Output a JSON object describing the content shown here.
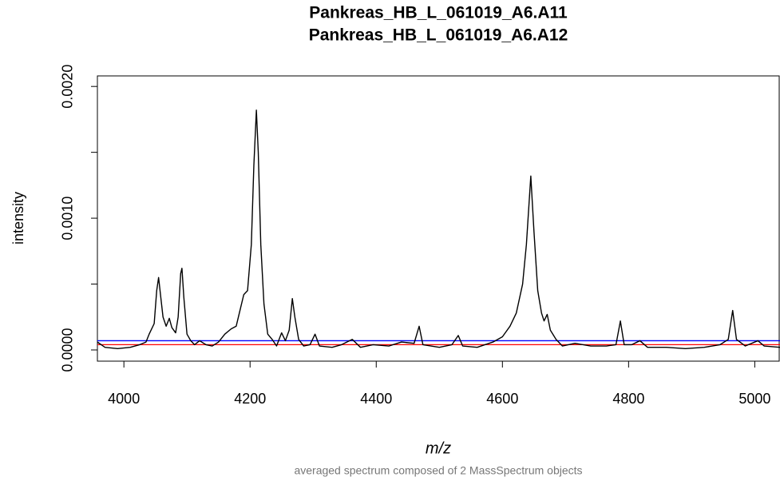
{
  "chart_data": {
    "type": "line",
    "title": [
      "Pankreas_HB_L_061019_A6.A11",
      "Pankreas_HB_L_061019_A6.A12"
    ],
    "xlabel": "m/z",
    "ylabel": "intensity",
    "subtitle": "averaged spectrum composed of 2 MassSpectrum objects",
    "xlim": [
      3958,
      5040
    ],
    "ylim": [
      -8.5e-05,
      0.00208
    ],
    "xticks": [
      4000,
      4200,
      4400,
      4600,
      4800,
      5000
    ],
    "yticks": [
      {
        "value": 0,
        "label": "0.0000"
      },
      {
        "value": 0.001,
        "label": "0.0010"
      },
      {
        "value": 0.002,
        "label": "0.0020"
      }
    ],
    "yticks_minor": [
      0.0005,
      0.0015
    ],
    "color": "#000000",
    "hlines": [
      {
        "value": 7e-05,
        "color": "#0000ff"
      },
      {
        "value": 4e-05,
        "color": "#ff0000"
      }
    ],
    "x": [
      3958,
      3970,
      3990,
      4010,
      4025,
      4035,
      4040,
      4048,
      4052,
      4055,
      4058,
      4062,
      4067,
      4072,
      4076,
      4082,
      4086,
      4090,
      4092,
      4095,
      4100,
      4106,
      4112,
      4120,
      4130,
      4140,
      4150,
      4160,
      4170,
      4178,
      4185,
      4190,
      4196,
      4202,
      4206,
      4210,
      4213,
      4217,
      4222,
      4228,
      4235,
      4242,
      4250,
      4256,
      4262,
      4267,
      4271,
      4277,
      4285,
      4295,
      4303,
      4310,
      4330,
      4345,
      4362,
      4375,
      4395,
      4420,
      4440,
      4460,
      4468,
      4474,
      4500,
      4520,
      4530,
      4537,
      4560,
      4585,
      4600,
      4612,
      4622,
      4632,
      4638,
      4645,
      4650,
      4656,
      4662,
      4666,
      4671,
      4676,
      4685,
      4695,
      4715,
      4740,
      4765,
      4780,
      4787,
      4793,
      4805,
      4818,
      4830,
      4860,
      4890,
      4920,
      4945,
      4958,
      4965,
      4971,
      4985,
      5005,
      5015,
      5040
    ],
    "values": [
      6e-05,
      2e-05,
      1e-05,
      2e-05,
      4e-05,
      6e-05,
      0.00012,
      0.0002,
      0.00045,
      0.00055,
      0.00042,
      0.00025,
      0.00018,
      0.00024,
      0.00017,
      0.00013,
      0.00025,
      0.00058,
      0.00062,
      0.0004,
      0.00012,
      7e-05,
      4e-05,
      7e-05,
      4e-05,
      3e-05,
      6e-05,
      0.00012,
      0.00016,
      0.00018,
      0.00032,
      0.00042,
      0.00045,
      0.0008,
      0.0014,
      0.00182,
      0.0015,
      0.0008,
      0.00035,
      0.00012,
      8e-05,
      3e-05,
      0.00013,
      7e-05,
      0.00015,
      0.00039,
      0.00025,
      8e-05,
      3e-05,
      4e-05,
      0.00012,
      3e-05,
      2e-05,
      4e-05,
      8e-05,
      2e-05,
      4e-05,
      3e-05,
      6e-05,
      5e-05,
      0.00018,
      4e-05,
      2e-05,
      4e-05,
      0.00011,
      3e-05,
      2e-05,
      6e-05,
      0.0001,
      0.00018,
      0.00028,
      0.0005,
      0.0008,
      0.00132,
      0.0009,
      0.00045,
      0.00028,
      0.00022,
      0.00027,
      0.00015,
      8e-05,
      3e-05,
      5e-05,
      3e-05,
      3e-05,
      4e-05,
      0.00022,
      4e-05,
      4e-05,
      7e-05,
      2e-05,
      2e-05,
      1e-05,
      2e-05,
      4e-05,
      8e-05,
      0.0003,
      8e-05,
      3e-05,
      7e-05,
      3e-05,
      2e-05
    ]
  }
}
